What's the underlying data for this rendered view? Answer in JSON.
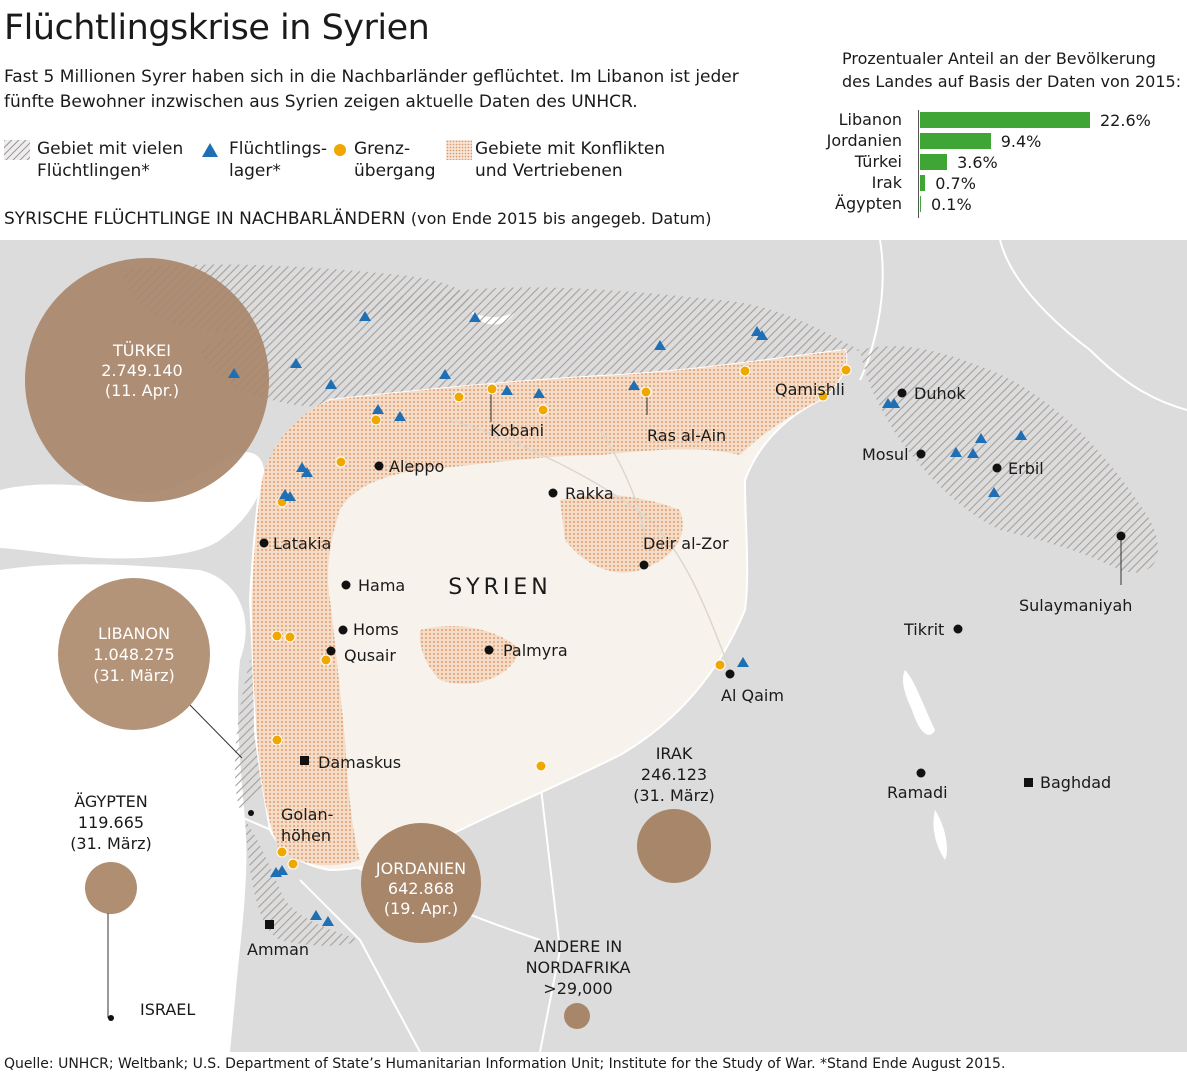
{
  "title": "Flüchtlingskrise in Syrien",
  "subtitle": "Fast 5 Millionen Syrer haben sich in die Nachbarländer geflüchtet. Im Libanon ist jeder fünfte Bewohner inzwischen aus Syrien zeigen aktuelle Daten des UNHCR.",
  "legend": {
    "area_many_refugees": "Gebiet mit vielen Flüchtlingen*",
    "refugee_camp": "Flüchtlings-lager*",
    "border_crossing": "Grenz-übergang",
    "conflict_area": "Gebiete mit Konflikten und Vertriebenen"
  },
  "section_title": "SYRISCHE FLÜCHTLINGE IN NACHBARLÄNDERN",
  "section_subtitle": "(von Ende 2015 bis angegeb. Datum)",
  "bar_chart_title": "Prozentualer Anteil an der Bevölkerung des Landes auf Basis der Daten von 2015:",
  "chart_data": {
    "type": "bar",
    "orientation": "horizontal",
    "title": "Prozentualer Anteil an der Bevölkerung des Landes auf Basis der Daten von 2015:",
    "categories": [
      "Libanon",
      "Jordanien",
      "Türkei",
      "Irak",
      "Ägypten"
    ],
    "values": [
      22.6,
      9.4,
      3.6,
      0.7,
      0.1
    ],
    "value_labels": [
      "22.6%",
      "9.4%",
      "3.6%",
      "0.7%",
      "0.1%"
    ],
    "unit": "%",
    "color": "#3fa535"
  },
  "country_bubbles": [
    {
      "name": "TÜRKEI",
      "value": "2.749.140",
      "date": "(11. Apr.)"
    },
    {
      "name": "LIBANON",
      "value": "1.048.275",
      "date": "(31. März)"
    },
    {
      "name": "ÄGYPTEN",
      "value": "119.665",
      "date": "(31. März)"
    },
    {
      "name": "JORDANIEN",
      "value": "642.868",
      "date": "(19. Apr.)"
    },
    {
      "name": "IRAK",
      "value": "246.123",
      "date": "(31. März)"
    },
    {
      "name": "ANDERE IN NORDAFRIKA",
      "value": ">29,000",
      "date": ""
    }
  ],
  "map_labels": {
    "country": "SYRIEN",
    "cities": [
      "Aleppo",
      "Kobani",
      "Rakka",
      "Ras al-Ain",
      "Qamishli",
      "Latakia",
      "Hama",
      "Homs",
      "Qusair",
      "Palmyra",
      "Deir al-Zor",
      "Al Qaim",
      "Damaskus",
      "Golan-",
      "höhen",
      "Amman",
      "Duhok",
      "Mosul",
      "Erbil",
      "Sulaymaniyah",
      "Tikrit",
      "Ramadi",
      "Baghdad",
      "ISRAEL"
    ]
  },
  "colors": {
    "bubble": "#a8866a",
    "bubble_text": "#ffffff",
    "syria_fill": "#f7f3ec",
    "conflict_fill": "#f0cdb4",
    "crossing": "#f0a800",
    "camp": "#1f6fb5",
    "land": "#dcdcdc",
    "bar": "#3fa535"
  },
  "source": "Quelle: UNHCR; Weltbank; U.S. Department of State’s Humanitarian Information Unit; Institute for the Study of War. *Stand Ende August 2015."
}
